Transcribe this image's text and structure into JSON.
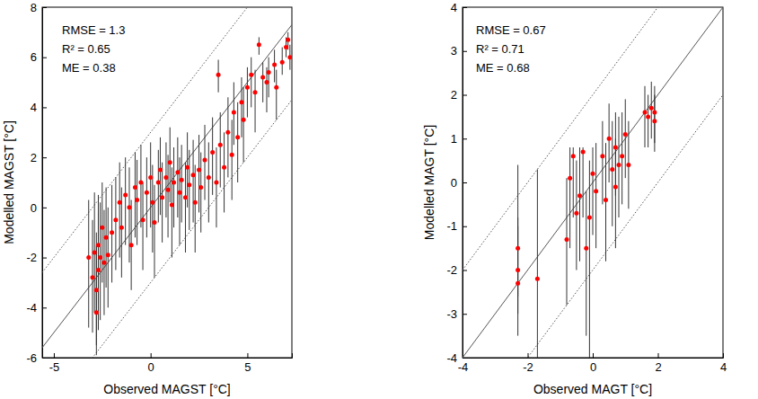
{
  "chart_data": [
    {
      "type": "scatter",
      "x_label": "Observed MAGST [°C]",
      "y_label": "Modelled MAGST [°C]",
      "annotations": [
        "RMSE = 1.3",
        "R² = 0.65",
        "ME = 0.38"
      ],
      "xlim": [
        -5.6,
        7.3
      ],
      "ylim": [
        -6,
        8
      ],
      "xticks": [
        -5,
        0,
        5
      ],
      "yticks": [
        -6,
        -4,
        -2,
        0,
        2,
        4,
        6,
        8
      ],
      "lines": [
        {
          "slope": 1,
          "intercept": 0,
          "line_style": "solid"
        },
        {
          "slope": 1,
          "intercept": 3,
          "line_style": "dotted"
        },
        {
          "slope": 1,
          "intercept": -3,
          "line_style": "dotted"
        }
      ],
      "series": [
        {
          "color": "#ff0000",
          "marker": "circle",
          "x": [
            -3.2,
            -3.0,
            -2.9,
            -2.8,
            -2.8,
            -2.7,
            -2.7,
            -2.6,
            -2.5,
            -2.4,
            -2.3,
            -2.2,
            -2.0,
            -1.8,
            -1.6,
            -1.5,
            -1.3,
            -1.1,
            -1.0,
            -0.8,
            -0.7,
            -0.5,
            -0.4,
            -0.2,
            0.0,
            0.1,
            0.2,
            0.4,
            0.5,
            0.6,
            0.8,
            0.9,
            1.0,
            1.1,
            1.2,
            1.4,
            1.5,
            1.6,
            1.8,
            1.9,
            2.0,
            2.2,
            2.3,
            2.5,
            2.6,
            2.8,
            3.0,
            3.2,
            3.4,
            3.5,
            3.6,
            3.8,
            4.0,
            4.2,
            4.3,
            4.5,
            4.7,
            4.8,
            5.0,
            5.2,
            5.4,
            5.6,
            5.8,
            6.0,
            6.1,
            6.4,
            6.5,
            6.8,
            7.0,
            7.1,
            7.2
          ],
          "values": [
            -2.0,
            -2.8,
            -1.8,
            -4.2,
            -3.3,
            -2.5,
            -1.5,
            -2.0,
            -0.8,
            -2.2,
            -1.2,
            -1.9,
            -1.0,
            -0.5,
            0.2,
            -0.8,
            0.5,
            0.0,
            -1.5,
            0.8,
            0.3,
            1.0,
            -0.5,
            0.6,
            1.2,
            0.2,
            -0.6,
            1.0,
            1.5,
            0.4,
            1.2,
            0.7,
            1.8,
            0.1,
            1.0,
            1.4,
            0.6,
            1.1,
            0.4,
            1.6,
            0.9,
            1.3,
            0.2,
            1.5,
            0.8,
            1.9,
            1.2,
            2.2,
            1.0,
            5.3,
            2.5,
            1.6,
            3.0,
            2.1,
            3.8,
            2.8,
            4.2,
            3.5,
            4.8,
            5.3,
            4.6,
            6.5,
            5.2,
            5.0,
            5.4,
            5.7,
            4.8,
            5.8,
            6.4,
            6.7,
            6.0
          ],
          "lower": [
            -4.8,
            -5.0,
            -4.2,
            -5.9,
            -5.5,
            -4.9,
            -3.8,
            -4.5,
            -3.0,
            -4.3,
            -3.2,
            -4.0,
            -3.0,
            -2.5,
            -2.0,
            -2.8,
            -1.5,
            -2.2,
            -3.3,
            -1.2,
            -1.5,
            -0.8,
            -2.5,
            -1.2,
            -0.8,
            -1.8,
            -2.8,
            -0.6,
            -0.3,
            -1.4,
            -0.4,
            -1.2,
            0.2,
            -2.0,
            -0.8,
            -0.4,
            -1.5,
            -0.6,
            -1.8,
            0.0,
            -0.9,
            -0.6,
            -1.8,
            -0.2,
            -1.0,
            0.3,
            -0.6,
            0.5,
            -0.8,
            4.6,
            0.8,
            -0.2,
            1.2,
            0.3,
            2.5,
            1.0,
            2.8,
            1.8,
            3.6,
            4.0,
            3.0,
            6.1,
            4.2,
            3.8,
            4.4,
            5.0,
            3.5,
            5.3,
            6.0,
            6.3,
            5.5
          ],
          "upper": [
            0.3,
            -0.5,
            0.6,
            -1.5,
            -1.0,
            -0.2,
            0.5,
            0.2,
            1.0,
            -0.1,
            0.8,
            0.0,
            0.9,
            1.2,
            1.8,
            0.8,
            2.0,
            1.6,
            0.3,
            2.2,
            1.9,
            2.5,
            1.0,
            2.0,
            2.6,
            1.7,
            0.9,
            2.3,
            2.8,
            1.8,
            2.6,
            2.1,
            3.2,
            1.6,
            2.4,
            2.8,
            2.0,
            2.5,
            1.8,
            3.0,
            2.3,
            2.7,
            1.7,
            2.9,
            2.2,
            3.3,
            2.6,
            3.6,
            2.4,
            5.9,
            3.8,
            3.0,
            4.4,
            3.5,
            5.0,
            4.2,
            5.2,
            4.8,
            5.6,
            6.0,
            5.5,
            6.8,
            5.8,
            5.6,
            6.0,
            6.3,
            5.5,
            6.4,
            6.8,
            7.0,
            6.5
          ]
        }
      ]
    },
    {
      "type": "scatter",
      "x_label": "Observed MAGT [°C]",
      "y_label": "Modelled MAGT [°C]",
      "annotations": [
        "RMSE = 0.67",
        "R² = 0.71",
        "ME = 0.68"
      ],
      "xlim": [
        -4,
        4
      ],
      "ylim": [
        -4,
        4
      ],
      "xticks": [
        -4,
        -2,
        0,
        2,
        4
      ],
      "yticks": [
        -4,
        -3,
        -2,
        -1,
        0,
        1,
        2,
        3,
        4
      ],
      "lines": [
        {
          "slope": 1,
          "intercept": 0,
          "line_style": "solid"
        },
        {
          "slope": 1,
          "intercept": 2,
          "line_style": "dotted"
        },
        {
          "slope": 1,
          "intercept": -2,
          "line_style": "dotted"
        }
      ],
      "series": [
        {
          "color": "#ff0000",
          "marker": "circle",
          "x": [
            -2.3,
            -2.3,
            -2.3,
            -1.7,
            -0.8,
            -0.7,
            -0.6,
            -0.5,
            -0.4,
            -0.3,
            -0.2,
            -0.1,
            0.0,
            0.1,
            0.3,
            0.4,
            0.5,
            0.6,
            0.7,
            0.7,
            0.8,
            0.9,
            1.0,
            1.1,
            1.6,
            1.7,
            1.8,
            1.9,
            1.9
          ],
          "values": [
            -1.5,
            -2.0,
            -2.3,
            -2.2,
            -1.3,
            0.1,
            0.6,
            -0.7,
            -0.3,
            0.7,
            -1.5,
            -0.8,
            0.2,
            -0.2,
            0.6,
            -0.4,
            1.0,
            0.3,
            -0.1,
            0.8,
            0.4,
            0.6,
            1.1,
            0.4,
            1.6,
            1.5,
            1.7,
            1.4,
            1.6
          ],
          "lower": [
            -2.6,
            -3.0,
            -3.5,
            -4.0,
            -2.8,
            -1.5,
            -0.8,
            -2.0,
            -1.8,
            -0.8,
            -3.5,
            -4.0,
            -1.2,
            -1.5,
            -0.5,
            -1.8,
            0.0,
            -1.0,
            -1.5,
            -0.3,
            -0.8,
            -0.5,
            0.1,
            -0.6,
            0.8,
            0.8,
            1.0,
            0.7,
            0.9
          ],
          "upper": [
            0.4,
            -0.8,
            -1.0,
            0.3,
            0.1,
            0.8,
            0.8,
            0.5,
            0.8,
            0.8,
            -0.2,
            0.5,
            0.8,
            0.9,
            1.4,
            0.9,
            1.8,
            1.4,
            1.0,
            1.6,
            1.5,
            1.6,
            1.9,
            1.4,
            2.2,
            2.0,
            2.3,
            2.0,
            2.2
          ]
        }
      ]
    }
  ]
}
